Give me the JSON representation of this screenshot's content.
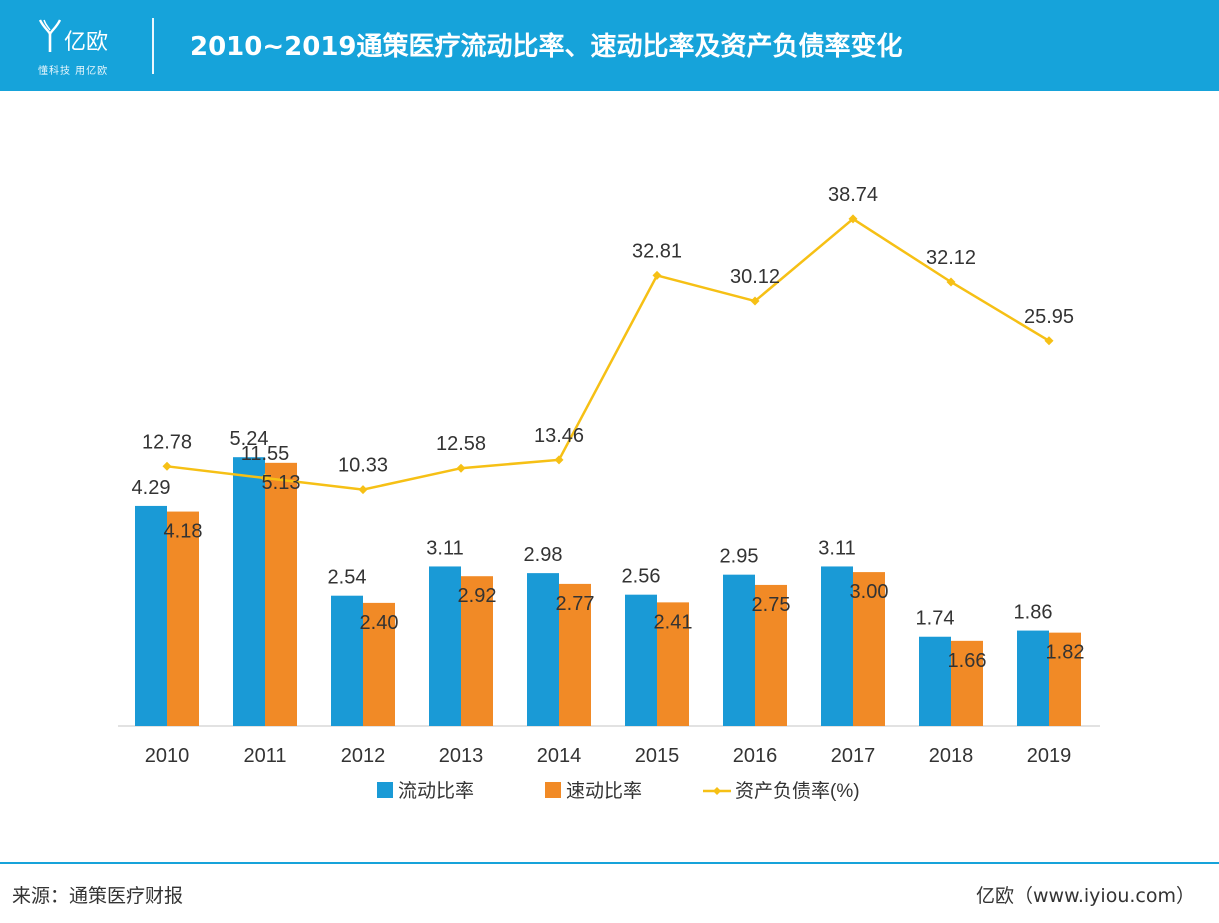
{
  "header": {
    "logo_text": "亿欧",
    "logo_slogan": "懂科技 用亿欧",
    "title": "2010~2019通策医疗流动比率、速动比率及资产负债率变化"
  },
  "footer": {
    "source": "来源：通策医疗财报",
    "credit": "亿欧（www.iyiou.com）"
  },
  "colors": {
    "header": "#16a3da",
    "bar1": "#1a9ad6",
    "bar2": "#f18a26",
    "line": "#f6c015"
  },
  "chart_data": {
    "type": "bar",
    "categories": [
      "2010",
      "2011",
      "2012",
      "2013",
      "2014",
      "2015",
      "2016",
      "2017",
      "2018",
      "2019"
    ],
    "series": [
      {
        "name": "流动比率",
        "type": "bar",
        "color": "#1a9ad6",
        "values": [
          "4.29",
          "5.24",
          "2.54",
          "3.11",
          "2.98",
          "2.56",
          "2.95",
          "3.11",
          "1.74",
          "1.86"
        ]
      },
      {
        "name": "速动比率",
        "type": "bar",
        "color": "#f18a26",
        "values": [
          "4.18",
          "5.13",
          "2.40",
          "2.92",
          "2.77",
          "2.41",
          "2.75",
          "3.00",
          "1.66",
          "1.82"
        ]
      },
      {
        "name": "资产负债率(%)",
        "type": "line",
        "color": "#f6c015",
        "values": [
          "12.78",
          "11.55",
          "10.33",
          "12.58",
          "13.46",
          "32.81",
          "30.12",
          "38.74",
          "32.12",
          "25.95"
        ]
      }
    ],
    "legend_position": "bottom",
    "grid": false
  }
}
